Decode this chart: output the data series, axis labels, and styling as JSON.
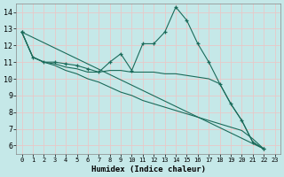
{
  "xlabel": "Humidex (Indice chaleur)",
  "bg_color": "#c5e8e8",
  "grid_color": "#e8c8c8",
  "line_color": "#1a6b5a",
  "xlim": [
    -0.5,
    23.5
  ],
  "ylim": [
    5.5,
    14.5
  ],
  "yticks": [
    6,
    7,
    8,
    9,
    10,
    11,
    12,
    13,
    14
  ],
  "xticks": [
    0,
    1,
    2,
    3,
    4,
    5,
    6,
    7,
    8,
    9,
    10,
    11,
    12,
    13,
    14,
    15,
    16,
    17,
    18,
    19,
    20,
    21,
    22,
    23
  ],
  "lines": [
    {
      "x": [
        0,
        1,
        2,
        3,
        4,
        5,
        6,
        7,
        8,
        9,
        10,
        11,
        12,
        13,
        14,
        15,
        16,
        17,
        18,
        19,
        20,
        21,
        22
      ],
      "y": [
        12.8,
        11.3,
        11.0,
        11.0,
        10.9,
        10.8,
        10.6,
        10.4,
        11.0,
        11.5,
        10.5,
        12.1,
        12.1,
        12.8,
        14.3,
        13.5,
        12.1,
        11.0,
        9.7,
        8.5,
        7.5,
        6.2,
        5.8
      ],
      "has_markers": true
    },
    {
      "x": [
        0,
        1,
        2,
        3,
        4,
        5,
        6,
        7,
        8,
        9,
        10,
        11,
        12,
        13,
        14,
        15,
        16,
        17,
        18,
        19,
        20,
        21,
        22
      ],
      "y": [
        12.8,
        11.3,
        11.0,
        10.9,
        10.7,
        10.6,
        10.4,
        10.4,
        10.5,
        10.5,
        10.4,
        10.4,
        10.4,
        10.3,
        10.3,
        10.2,
        10.1,
        10.0,
        9.7,
        8.5,
        7.5,
        6.2,
        5.8
      ],
      "has_markers": false
    },
    {
      "x": [
        0,
        1,
        2,
        3,
        4,
        5,
        6,
        7,
        8,
        9,
        10,
        11,
        12,
        13,
        14,
        15,
        16,
        17,
        18,
        19,
        20,
        21,
        22
      ],
      "y": [
        12.8,
        11.3,
        11.0,
        10.8,
        10.5,
        10.3,
        10.0,
        9.8,
        9.5,
        9.2,
        9.0,
        8.7,
        8.5,
        8.3,
        8.1,
        7.9,
        7.7,
        7.5,
        7.3,
        7.1,
        6.9,
        6.4,
        5.8
      ],
      "has_markers": false
    },
    {
      "x": [
        0,
        22
      ],
      "y": [
        12.8,
        5.8
      ],
      "has_markers": true
    }
  ]
}
